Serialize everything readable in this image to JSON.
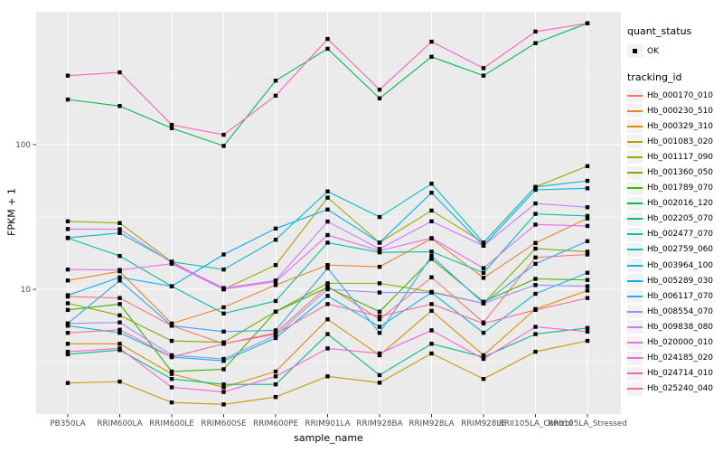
{
  "figure": {
    "background": "#FFFFFF",
    "panel_background": "#EBEBEB",
    "grid_color": "#FFFFFF",
    "tick_color": "#333333",
    "tick_label_color": "#4D4D4D",
    "point_color": "#000000"
  },
  "axes": {
    "x_title": "sample_name",
    "y_title": "FPKM + 1"
  },
  "legend": {
    "quant_status_title": "quant_status",
    "quant_status_items": [
      {
        "label": "OK"
      }
    ],
    "tracking_title": "tracking_id",
    "key_background": "#F2F2F2"
  },
  "chart_data": {
    "type": "line",
    "title": "",
    "xlabel": "sample_name",
    "ylabel": "FPKM + 1",
    "y_scale": "log10",
    "grid": true,
    "legend_position": "right",
    "point_shape": "filled-black-square",
    "y_ticks": [
      "100",
      "10"
    ],
    "y_tick_values": [
      100,
      10
    ],
    "y_minor_values": [
      316.23,
      31.62,
      3.162
    ],
    "ylim_log10": [
      0.1,
      2.92
    ],
    "categories": [
      "PB350LA",
      "RRIM600LA",
      "RRIM600LE",
      "RRIM600SE",
      "RRIM600PE",
      "RRIM901LA",
      "RRIM928BA",
      "RRIM928LA",
      "RRIM928LE",
      "RRII105LA_Control",
      "RRII105LA_Stressed"
    ],
    "series": [
      {
        "name": "Hb_000170_010",
        "color": "#F8766D",
        "values": [
          8.9,
          8.7,
          5.6,
          4.2,
          5.0,
          10.5,
          6.2,
          12.1,
          5.9,
          16.6,
          17.4
        ]
      },
      {
        "name": "Hb_000230_510",
        "color": "#EA8331",
        "values": [
          11.5,
          13.3,
          5.8,
          7.5,
          10.7,
          14.7,
          14.3,
          22.4,
          12.0,
          20.9,
          30.9
        ]
      },
      {
        "name": "Hb_000329_310",
        "color": "#D89000",
        "values": [
          4.2,
          4.2,
          2.6,
          2.1,
          2.7,
          6.2,
          3.5,
          7.1,
          3.5,
          7.3,
          9.8
        ]
      },
      {
        "name": "Hb_001083_020",
        "color": "#C09B00",
        "values": [
          2.25,
          2.3,
          1.65,
          1.6,
          1.8,
          2.5,
          2.26,
          3.6,
          2.4,
          3.7,
          4.4
        ]
      },
      {
        "name": "Hb_001117_090",
        "color": "#A3A500",
        "values": [
          29.5,
          28.7,
          15.5,
          10.0,
          14.7,
          43.0,
          21.0,
          35.0,
          21.0,
          51.0,
          71.0
        ]
      },
      {
        "name": "Hb_001360_050",
        "color": "#7CAE00",
        "values": [
          8.0,
          6.6,
          4.4,
          4.3,
          7.0,
          11.0,
          11.0,
          9.6,
          8.0,
          19.1,
          18.2
        ]
      },
      {
        "name": "Hb_001789_070",
        "color": "#39B600",
        "values": [
          7.2,
          7.9,
          2.7,
          2.8,
          7.0,
          10.3,
          7.0,
          16.2,
          8.2,
          11.8,
          11.6
        ]
      },
      {
        "name": "Hb_002016_120",
        "color": "#00BB4E",
        "values": [
          205,
          185,
          130,
          98,
          277,
          460,
          209,
          405,
          300,
          503,
          690
        ]
      },
      {
        "name": "Hb_002205_070",
        "color": "#00BF7D",
        "values": [
          3.55,
          3.8,
          2.4,
          2.2,
          2.2,
          4.9,
          2.55,
          4.2,
          3.4,
          4.9,
          5.4
        ]
      },
      {
        "name": "Hb_002477_070",
        "color": "#00C1A3",
        "values": [
          22.6,
          17.0,
          10.5,
          6.8,
          8.3,
          21.0,
          18.0,
          18.2,
          13.0,
          33.2,
          32.1
        ]
      },
      {
        "name": "Hb_002759_060",
        "color": "#00BFC4",
        "values": [
          22.7,
          24.5,
          15.5,
          13.7,
          22.0,
          47.5,
          31.6,
          53.7,
          21.0,
          51.0,
          56.2
        ]
      },
      {
        "name": "Hb_003964_100",
        "color": "#00BAE0",
        "values": [
          5.6,
          5.0,
          3.4,
          3.2,
          4.6,
          9.0,
          5.5,
          9.5,
          5.0,
          9.3,
          13.0
        ]
      },
      {
        "name": "Hb_005289_030",
        "color": "#00B0F6",
        "values": [
          9.1,
          12.1,
          10.5,
          17.4,
          26.3,
          35.6,
          21.0,
          46.5,
          20.0,
          48.7,
          49.9
        ]
      },
      {
        "name": "Hb_006117_070",
        "color": "#35A2FF",
        "values": [
          5.8,
          11.5,
          5.6,
          5.1,
          5.2,
          14.0,
          5.0,
          17.0,
          8.0,
          15.0,
          21.5
        ]
      },
      {
        "name": "Hb_008554_070",
        "color": "#9590FF",
        "values": [
          5.8,
          5.9,
          3.5,
          3.3,
          4.8,
          10.0,
          9.5,
          9.5,
          8.0,
          10.7,
          10.5
        ]
      },
      {
        "name": "Hb_009838_080",
        "color": "#C77CFF",
        "values": [
          26.1,
          26.0,
          15.3,
          10.2,
          11.5,
          29.4,
          19.0,
          29.5,
          20.0,
          39.2,
          36.9
        ]
      },
      {
        "name": "Hb_020000_010",
        "color": "#E76BF3",
        "values": [
          13.7,
          13.6,
          15.0,
          10.0,
          11.3,
          23.7,
          18.5,
          22.6,
          14.0,
          28.0,
          27.4
        ]
      },
      {
        "name": "Hb_024185_020",
        "color": "#FA62DB",
        "values": [
          3.7,
          3.9,
          2.1,
          1.95,
          2.5,
          3.9,
          3.6,
          5.2,
          3.3,
          5.5,
          5.1
        ]
      },
      {
        "name": "Hb_024714_010",
        "color": "#FF62BC",
        "values": [
          300,
          316,
          137,
          117,
          218,
          538,
          240,
          515,
          338,
          605,
          690
        ]
      },
      {
        "name": "Hb_025240_040",
        "color": "#FF6A98",
        "values": [
          5.0,
          5.25,
          3.4,
          4.2,
          4.9,
          7.9,
          6.5,
          7.9,
          5.8,
          7.2,
          8.7
        ]
      }
    ]
  }
}
